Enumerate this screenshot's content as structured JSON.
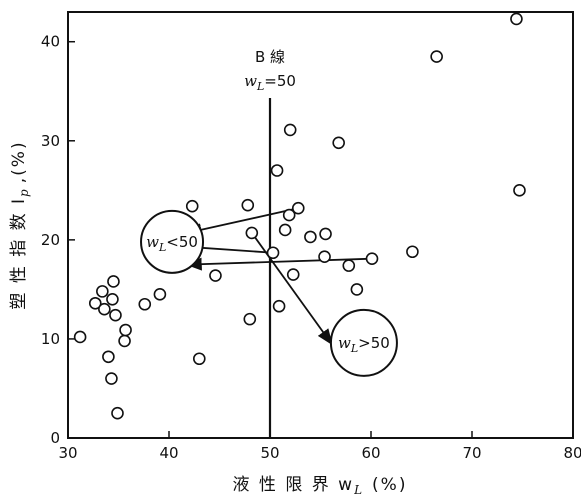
{
  "chart_data": {
    "type": "scatter",
    "xlabel": "液 性 限 界  w",
    "xlabel_sub": "L",
    "xlabel_unit": "(%)",
    "ylabel": "塑 性 指 数  I",
    "ylabel_sub": "p",
    "ylabel_unit": ",(%)",
    "xlim": [
      30,
      80
    ],
    "ylim": [
      0,
      43
    ],
    "x_ticks": [
      30,
      40,
      50,
      60,
      70,
      80
    ],
    "y_ticks": [
      0,
      10,
      20,
      30,
      40
    ],
    "points": [
      {
        "x": 31.2,
        "y": 10.2
      },
      {
        "x": 32.7,
        "y": 13.6
      },
      {
        "x": 33.4,
        "y": 14.8
      },
      {
        "x": 33.6,
        "y": 13.0
      },
      {
        "x": 34.0,
        "y": 8.2
      },
      {
        "x": 34.3,
        "y": 6.0
      },
      {
        "x": 34.4,
        "y": 14.0
      },
      {
        "x": 34.5,
        "y": 15.8
      },
      {
        "x": 34.7,
        "y": 12.4
      },
      {
        "x": 34.9,
        "y": 2.5
      },
      {
        "x": 35.6,
        "y": 9.8
      },
      {
        "x": 35.7,
        "y": 10.9
      },
      {
        "x": 37.6,
        "y": 13.5
      },
      {
        "x": 39.1,
        "y": 14.5
      },
      {
        "x": 42.3,
        "y": 23.4
      },
      {
        "x": 43.0,
        "y": 8.0
      },
      {
        "x": 44.6,
        "y": 16.4
      },
      {
        "x": 47.8,
        "y": 23.5
      },
      {
        "x": 48.0,
        "y": 12.0
      },
      {
        "x": 48.2,
        "y": 20.7
      },
      {
        "x": 50.3,
        "y": 18.7
      },
      {
        "x": 50.7,
        "y": 27.0
      },
      {
        "x": 50.9,
        "y": 13.3
      },
      {
        "x": 51.5,
        "y": 21.0
      },
      {
        "x": 51.9,
        "y": 22.5
      },
      {
        "x": 52.0,
        "y": 31.1
      },
      {
        "x": 52.3,
        "y": 16.5
      },
      {
        "x": 52.8,
        "y": 23.2
      },
      {
        "x": 54.0,
        "y": 20.3
      },
      {
        "x": 55.4,
        "y": 18.3
      },
      {
        "x": 55.5,
        "y": 20.6
      },
      {
        "x": 56.8,
        "y": 29.8
      },
      {
        "x": 57.8,
        "y": 17.4
      },
      {
        "x": 58.6,
        "y": 15.0
      },
      {
        "x": 60.1,
        "y": 18.1
      },
      {
        "x": 64.1,
        "y": 18.8
      },
      {
        "x": 66.5,
        "y": 38.5
      },
      {
        "x": 74.4,
        "y": 42.3
      },
      {
        "x": 74.7,
        "y": 25.0
      }
    ],
    "b_line": {
      "x": 50,
      "label_top": "B 線",
      "label_eq_var": "w",
      "label_eq_sub": "L",
      "label_eq_rest": "=50"
    },
    "annotations": {
      "left_label": {
        "var": "w",
        "sub": "L",
        "rest": "<50",
        "x": 40.3,
        "y": 19.8
      },
      "right_label": {
        "var": "w",
        "sub": "L",
        "rest": ">50",
        "x": 59.3,
        "y": 9.6
      }
    },
    "arrows_left": [
      {
        "from": [
          52.8,
          23.2
        ],
        "to": [
          41.8,
          20.7
        ]
      },
      {
        "from": [
          50.3,
          18.7
        ],
        "to": [
          41.8,
          19.3
        ]
      },
      {
        "from": [
          60.1,
          18.1
        ],
        "to": [
          41.8,
          17.5
        ]
      }
    ],
    "arrows_right": [
      {
        "from": [
          48.2,
          20.7
        ],
        "to": [
          56.1,
          9.5
        ]
      }
    ]
  }
}
